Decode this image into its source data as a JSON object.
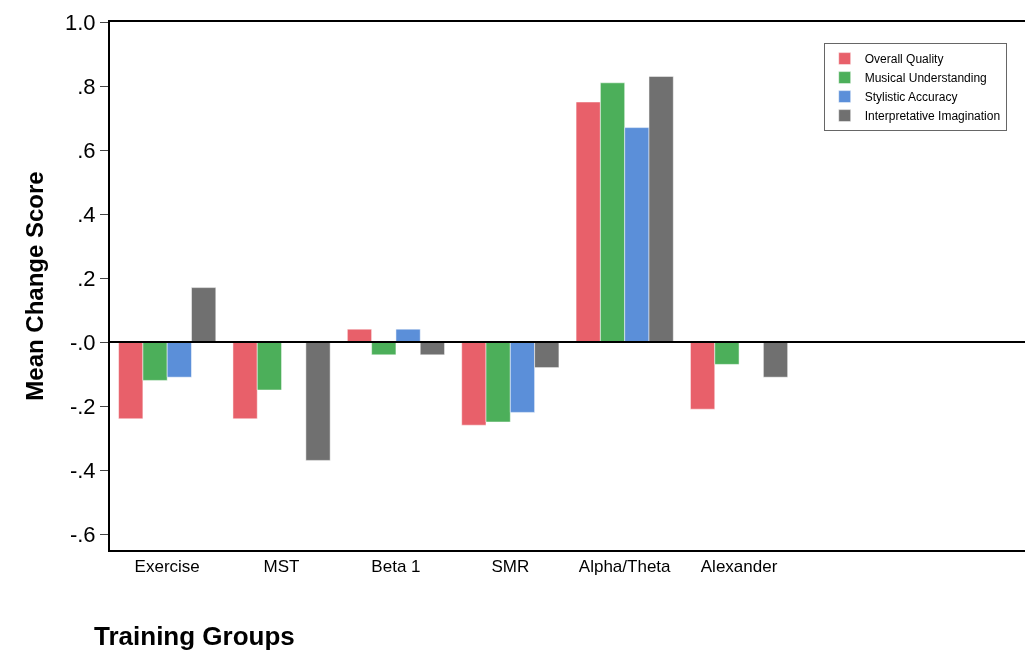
{
  "chart_data": {
    "type": "bar",
    "xlabel": "Training Groups",
    "ylabel": "Mean Change Score",
    "categories": [
      "Exercise",
      "MST",
      "Beta 1",
      "SMR",
      "Alpha/Theta",
      "Alexander"
    ],
    "series": [
      {
        "name": "Overall Quality",
        "color": "#e8606a",
        "values": [
          -0.24,
          -0.24,
          0.04,
          -0.26,
          0.75,
          -0.21
        ]
      },
      {
        "name": "Musical Understanding",
        "color": "#4caf5a",
        "values": [
          -0.12,
          -0.15,
          -0.04,
          -0.25,
          0.81,
          -0.07
        ]
      },
      {
        "name": "Stylistic Accuracy",
        "color": "#5b8fd9",
        "values": [
          -0.11,
          null,
          0.04,
          -0.22,
          0.67,
          null
        ]
      },
      {
        "name": "Interpretative Imagination",
        "color": "#707070",
        "values": [
          0.17,
          -0.37,
          -0.04,
          -0.08,
          0.83,
          -0.11
        ]
      }
    ],
    "ylim": [
      -0.65,
      1.0
    ],
    "yticks": [
      {
        "value": 1.0,
        "label": "1.0"
      },
      {
        "value": 0.8,
        "label": ".8"
      },
      {
        "value": 0.6,
        "label": ".6"
      },
      {
        "value": 0.4,
        "label": ".4"
      },
      {
        "value": 0.2,
        "label": ".2"
      },
      {
        "value": 0,
        "label": "-.0"
      },
      {
        "value": -0.2,
        "label": "-.2"
      },
      {
        "value": -0.4,
        "label": "-.4"
      },
      {
        "value": -0.6,
        "label": "-.6"
      }
    ],
    "ref_lines": [
      {
        "axis": "y",
        "value": 0,
        "color": "#000000"
      }
    ],
    "grid": false,
    "legend": "top right"
  }
}
